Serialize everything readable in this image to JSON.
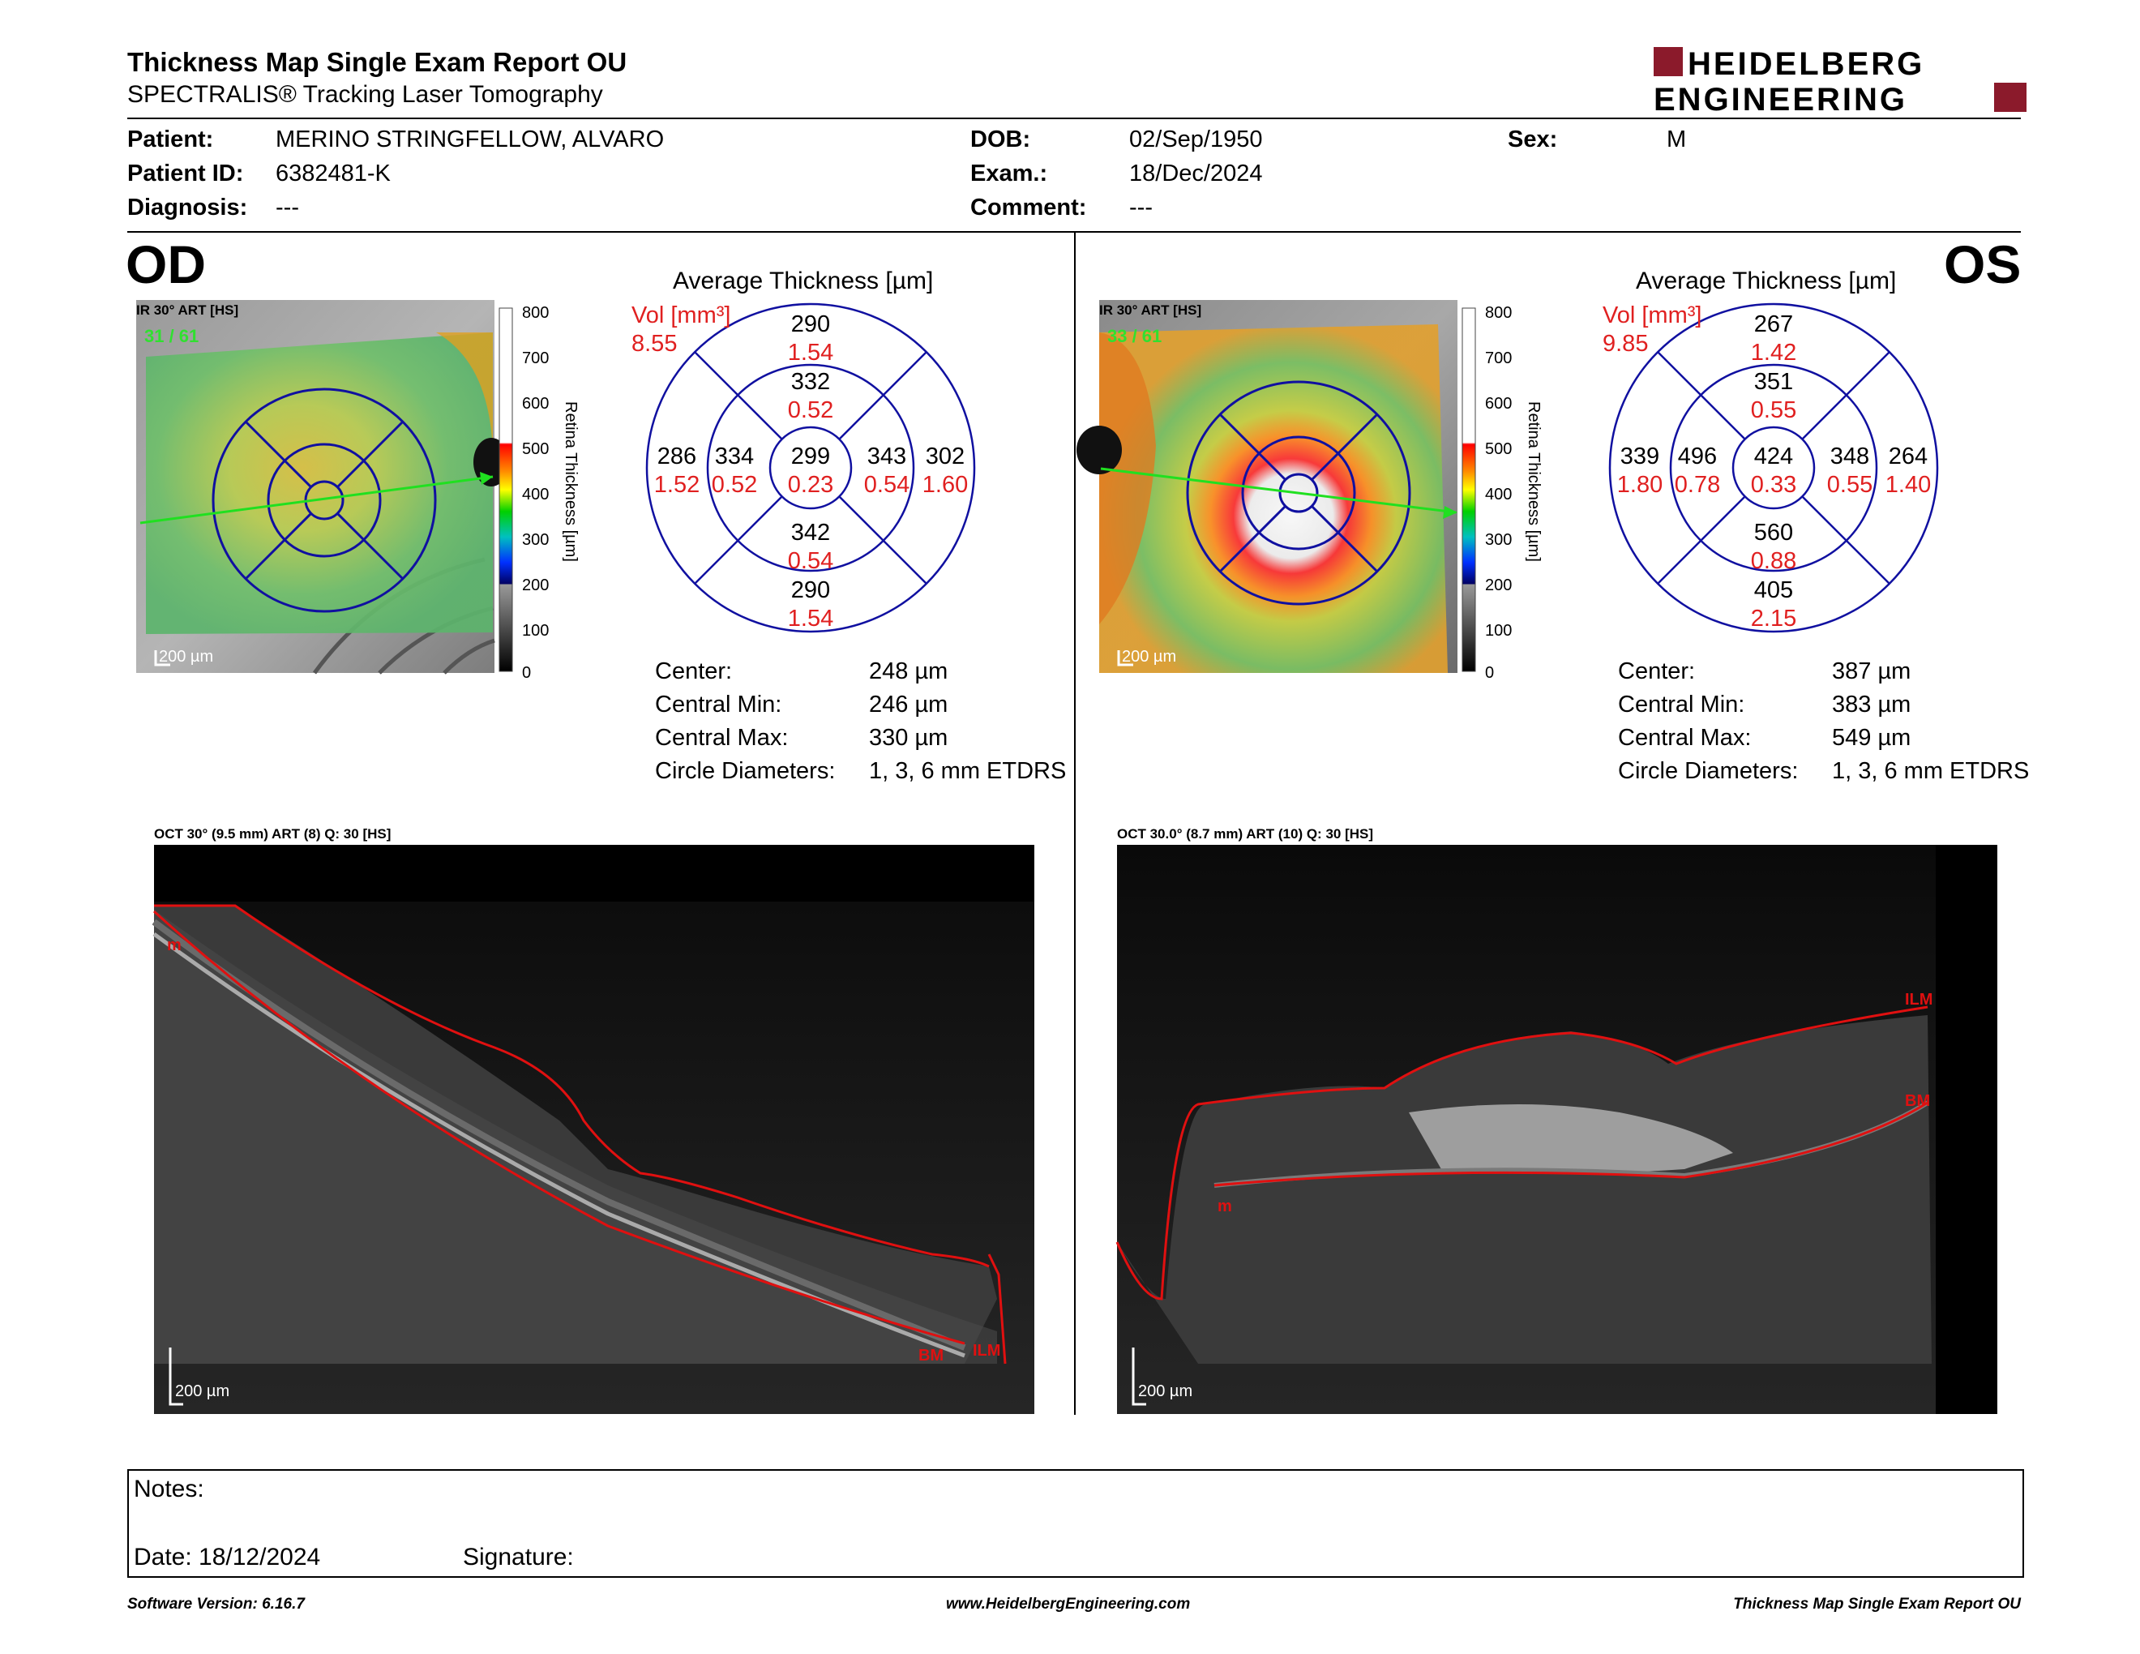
{
  "header": {
    "title": "Thickness Map Single Exam Report OU",
    "subtitle": "SPECTRALIS® Tracking Laser Tomography",
    "logo_line1": "HEIDELBERG",
    "logo_line2": "ENGINEERING",
    "logo_color": "#8b1a2b"
  },
  "patient": {
    "patient_label": "Patient:",
    "patient_value": "MERINO STRINGFELLOW, ALVARO",
    "id_label": "Patient ID:",
    "id_value": "6382481-K",
    "diagnosis_label": "Diagnosis:",
    "diagnosis_value": "---",
    "dob_label": "DOB:",
    "dob_value": "02/Sep/1950",
    "exam_label": "Exam.:",
    "exam_value": "18/Dec/2024",
    "comment_label": "Comment:",
    "comment_value": "---",
    "sex_label": "Sex:",
    "sex_value": "M"
  },
  "scale": {
    "ticks": [
      "800",
      "700",
      "600",
      "500",
      "400",
      "300",
      "200",
      "100",
      "0"
    ],
    "axis_label": "Retina Thickness [µm]"
  },
  "od": {
    "eye": "OD",
    "ir_label": "IR 30° ART [HS]",
    "frame": "31 / 61",
    "scalebar": "200 µm",
    "avg_title": "Average Thickness [µm]",
    "vol_label": "Vol [mm³]",
    "vol_value": "8.55",
    "sectors": {
      "outer_top": {
        "t": "290",
        "v": "1.54"
      },
      "inner_top": {
        "t": "332",
        "v": "0.52"
      },
      "outer_left": {
        "t": "286",
        "v": "1.52"
      },
      "inner_left": {
        "t": "334",
        "v": "0.52"
      },
      "center": {
        "t": "299",
        "v": "0.23"
      },
      "inner_right": {
        "t": "343",
        "v": "0.54"
      },
      "outer_right": {
        "t": "302",
        "v": "1.60"
      },
      "inner_bottom": {
        "t": "342",
        "v": "0.54"
      },
      "outer_bottom": {
        "t": "290",
        "v": "1.54"
      }
    },
    "stats": [
      {
        "label": "Center:",
        "value": "248 µm"
      },
      {
        "label": "Central Min:",
        "value": "246 µm"
      },
      {
        "label": "Central Max:",
        "value": "330 µm"
      },
      {
        "label": "Circle Diameters:",
        "value": "1, 3, 6 mm ETDRS"
      }
    ],
    "oct_label": "OCT 30° (9.5 mm) ART (8) Q: 30 [HS]",
    "oct_scalebar": "200 µm",
    "layer_labels": [
      "m",
      "BM",
      "ILM"
    ]
  },
  "os": {
    "eye": "OS",
    "ir_label": "IR 30° ART [HS]",
    "frame": "33 / 61",
    "scalebar": "200 µm",
    "avg_title": "Average Thickness [µm]",
    "vol_label": "Vol [mm³]",
    "vol_value": "9.85",
    "sectors": {
      "outer_top": {
        "t": "267",
        "v": "1.42"
      },
      "inner_top": {
        "t": "351",
        "v": "0.55"
      },
      "outer_left": {
        "t": "339",
        "v": "1.80"
      },
      "inner_left": {
        "t": "496",
        "v": "0.78"
      },
      "center": {
        "t": "424",
        "v": "0.33"
      },
      "inner_right": {
        "t": "348",
        "v": "0.55"
      },
      "outer_right": {
        "t": "264",
        "v": "1.40"
      },
      "inner_bottom": {
        "t": "560",
        "v": "0.88"
      },
      "outer_bottom": {
        "t": "405",
        "v": "2.15"
      }
    },
    "stats": [
      {
        "label": "Center:",
        "value": "387 µm"
      },
      {
        "label": "Central Min:",
        "value": "383 µm"
      },
      {
        "label": "Central Max:",
        "value": "549 µm"
      },
      {
        "label": "Circle Diameters:",
        "value": "1, 3, 6 mm ETDRS"
      }
    ],
    "oct_label": "OCT 30.0° (8.7 mm) ART (10) Q: 30 [HS]",
    "oct_scalebar": "200 µm",
    "layer_labels": [
      "ILM",
      "BM",
      "m"
    ]
  },
  "notes": {
    "notes_label": "Notes:",
    "date_label": "Date: 18/12/2024",
    "signature_label": "Signature:"
  },
  "footer": {
    "left": "Software Version: 6.16.7",
    "center": "www.HeidelbergEngineering.com",
    "right": "Thickness Map Single Exam Report OU"
  }
}
